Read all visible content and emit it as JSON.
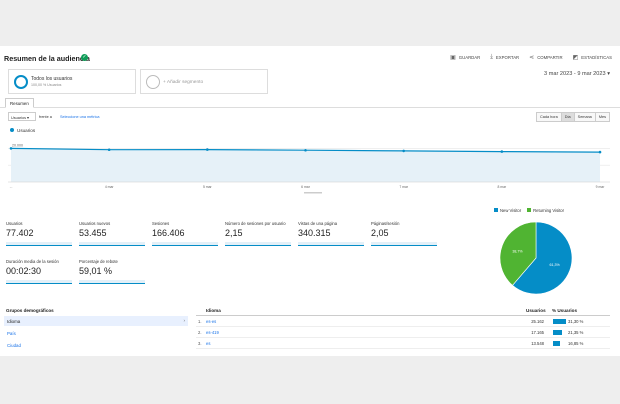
{
  "header": {
    "title": "Resumen de la audiencia",
    "actions": [
      {
        "label": "GUARDAR",
        "icon": "save-icon"
      },
      {
        "label": "EXPORTAR",
        "icon": "export-icon"
      },
      {
        "label": "COMPARTIR",
        "icon": "share-icon"
      },
      {
        "label": "ESTADÍSTICAS",
        "icon": "insights-icon"
      }
    ]
  },
  "segments": {
    "active": {
      "name": "Todos los usuarios",
      "sub": "100,00 % Usuarios"
    },
    "add_label": "+ Añadir segmento"
  },
  "date_range": "3 mar 2023 - 9 mar 2023",
  "tabs": [
    "Resumen"
  ],
  "controls": {
    "metric": "Usuarios",
    "versus": "frente a",
    "select_metric": "Seleccione una métrica",
    "granularity": [
      "Cada hora",
      "Día",
      "Semana",
      "Mes"
    ],
    "active_granularity": "Día"
  },
  "chart_data": {
    "type": "line",
    "series": [
      {
        "name": "Usuarios",
        "values": [
          20000,
          19200,
          19300,
          18900,
          18500,
          18100,
          17800
        ]
      }
    ],
    "x": [
      "3 mar",
      "4 mar",
      "5 mar",
      "6 mar",
      "7 mar",
      "8 mar",
      "9 mar"
    ],
    "x_ticks": [
      "...",
      "4 mar",
      "5 mar",
      "6 mar",
      "7 mar",
      "8 mar",
      "9 mar"
    ],
    "y_ticks": [
      "20.000",
      "10.000"
    ],
    "ylim": [
      0,
      25000
    ],
    "color": "#058dc7"
  },
  "metrics": [
    {
      "label": "Usuarios",
      "value": "77.402"
    },
    {
      "label": "Usuarios nuevos",
      "value": "53.455"
    },
    {
      "label": "Sesiones",
      "value": "166.406"
    },
    {
      "label": "Número de sesiones por usuario",
      "value": "2,15"
    },
    {
      "label": "Vistas de una página",
      "value": "340.315"
    },
    {
      "label": "Páginas/sesión",
      "value": "2,05"
    },
    {
      "label": "Duración media de la sesión",
      "value": "00:02:30"
    },
    {
      "label": "Porcentaje de rebote",
      "value": "59,01 %"
    }
  ],
  "pie": {
    "legend": [
      {
        "name": "New Visitor",
        "color": "#058dc7"
      },
      {
        "name": "Returning Visitor",
        "color": "#50b432"
      }
    ],
    "slices": [
      {
        "name": "New Visitor",
        "value": 61.3,
        "label": "61,3%",
        "color": "#058dc7"
      },
      {
        "name": "Returning Visitor",
        "value": 38.7,
        "label": "38,7%",
        "color": "#50b432"
      }
    ]
  },
  "demographics": {
    "heading": "Grupos demográficos",
    "items": [
      "Idioma",
      "País",
      "Ciudad"
    ]
  },
  "language_table": {
    "headers": [
      "Idioma",
      "Usuarios",
      "% Usuarios"
    ],
    "rows": [
      {
        "n": "1.",
        "lang": "es-es",
        "users": "25.162",
        "pct": "31,30 %",
        "share": 0.313
      },
      {
        "n": "2.",
        "lang": "es-419",
        "users": "17.165",
        "pct": "21,35 %",
        "share": 0.2135
      },
      {
        "n": "3.",
        "lang": "es",
        "users": "13.548",
        "pct": "16,85 %",
        "share": 0.1685
      }
    ]
  }
}
